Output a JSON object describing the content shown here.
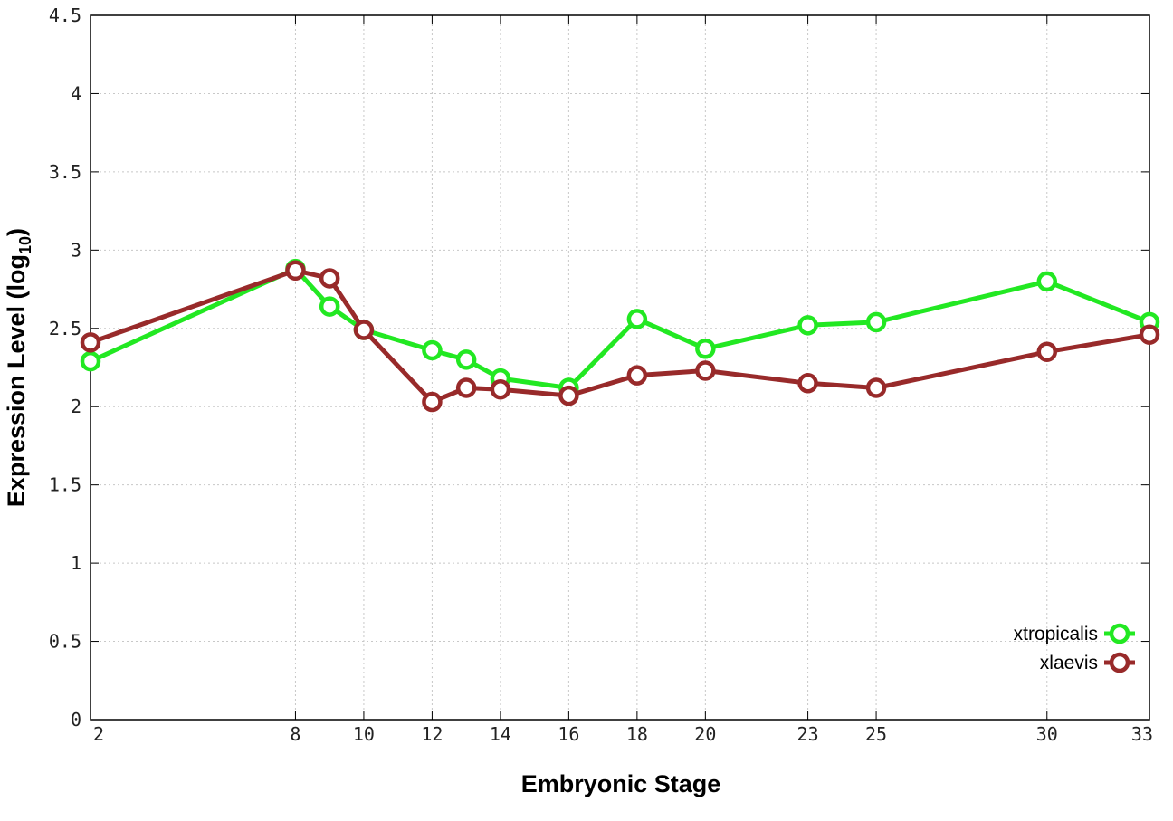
{
  "chart_data": {
    "type": "line",
    "xlabel": "Embryonic Stage",
    "ylabel_main": "Expression Level (log",
    "ylabel_sub": "10",
    "ylabel_close": ")",
    "ylim": [
      0,
      4.5
    ],
    "xlim": [
      2,
      33
    ],
    "x": [
      2,
      8,
      9,
      10,
      12,
      13,
      14,
      16,
      18,
      20,
      23,
      25,
      30,
      33
    ],
    "x_ticks": [
      2,
      8,
      10,
      12,
      14,
      16,
      18,
      20,
      23,
      25,
      30,
      33
    ],
    "y_ticks": [
      "0",
      "0.5",
      "1",
      "1.5",
      "2",
      "2.5",
      "3",
      "3.5",
      "4",
      "4.5"
    ],
    "grid": true,
    "legend_position": "bottom-right",
    "series": [
      {
        "name": "xtropicalis",
        "color": "#22e822",
        "values": [
          2.29,
          2.88,
          2.64,
          2.49,
          2.36,
          2.3,
          2.18,
          2.12,
          2.56,
          2.37,
          2.52,
          2.54,
          2.8,
          2.54
        ]
      },
      {
        "name": "xlaevis",
        "color": "#982a2a",
        "values": [
          2.41,
          2.87,
          2.82,
          2.49,
          2.03,
          2.12,
          2.11,
          2.07,
          2.2,
          2.23,
          2.15,
          2.12,
          2.35,
          2.46
        ]
      }
    ]
  }
}
